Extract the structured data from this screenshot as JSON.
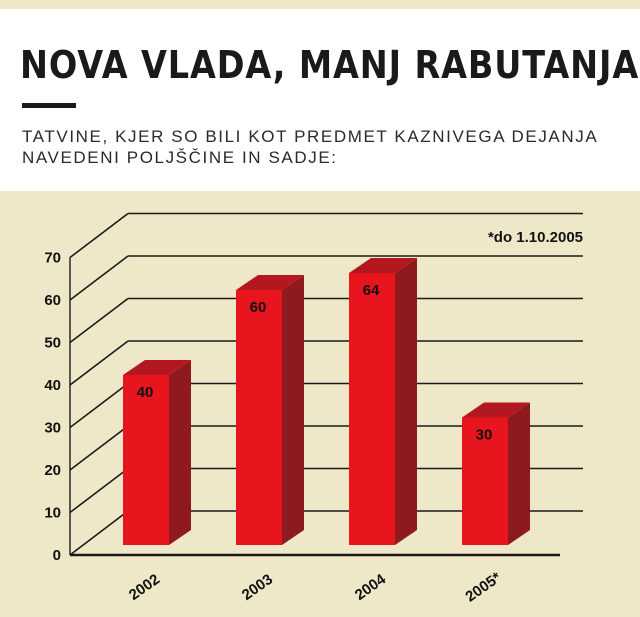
{
  "header": {
    "title": "NOVA VLADA, MANJ RABUTANJA",
    "subtitle": "TATVINE, KJER SO BILI KOT PREDMET KAZNIVEGA DEJANJA NAVEDENI POLJŠČINE IN SADJE:"
  },
  "chart_data": {
    "type": "bar",
    "style": "3d",
    "categories": [
      "2002",
      "2003",
      "2004",
      "2005*"
    ],
    "values": [
      40,
      60,
      64,
      30
    ],
    "ylim": [
      0,
      70
    ],
    "yticks": [
      "0",
      "10",
      "20",
      "30",
      "40",
      "50",
      "60",
      "70"
    ],
    "note": "*do 1.10.2005",
    "grid": true,
    "bar_color": "#e8141e"
  }
}
